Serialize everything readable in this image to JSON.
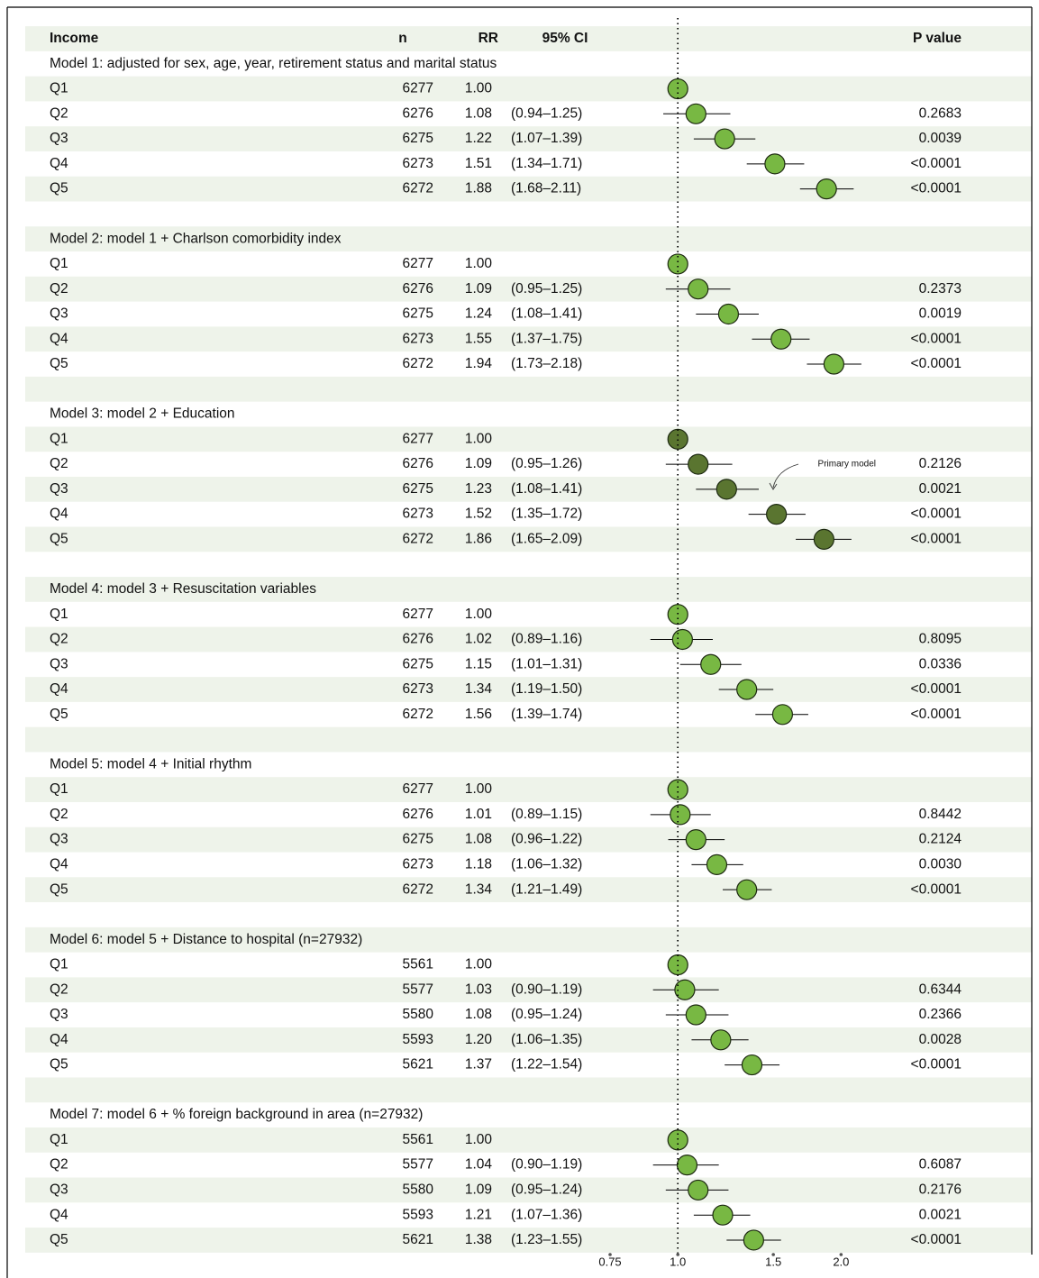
{
  "chart_data": {
    "type": "forest",
    "header": {
      "label": "Income",
      "n": "n",
      "rr": "RR",
      "ci": "95% CI",
      "p": "P value"
    },
    "log_scale": true,
    "xlim": [
      0.7,
      2.4
    ],
    "xticks": [
      0.75,
      {
        "value": 1,
        "label": "1.0"
      },
      1.5,
      {
        "value": 2,
        "label": "2.0"
      }
    ],
    "reference_line": 1,
    "annotation": "Primary model",
    "groups": [
      {
        "title": "Model 1: adjusted for sex, age, year, retirement status and marital status",
        "color": "#78b843",
        "categories": [
          "Q1",
          "Q2",
          "Q3",
          "Q4",
          "Q5"
        ],
        "n": [
          6277,
          6276,
          6275,
          6273,
          6272
        ],
        "values": [
          1.0,
          1.08,
          1.22,
          1.51,
          1.88
        ],
        "value_labels": [
          "1.00",
          "1.08",
          "1.22",
          "1.51",
          "1.88"
        ],
        "ci_low": [
          null,
          0.94,
          1.07,
          1.34,
          1.68
        ],
        "ci_high": [
          null,
          1.25,
          1.39,
          1.71,
          2.11
        ],
        "ci_labels": [
          null,
          "(0.94–1.25)",
          "(1.07–1.39)",
          "(1.34–1.71)",
          "(1.68–2.11)"
        ],
        "p_values": [
          null,
          "0.2683",
          "0.0039",
          "<0.0001",
          "<0.0001"
        ]
      },
      {
        "title": "Model 2: model 1 + Charlson comorbidity index",
        "color": "#78b843",
        "categories": [
          "Q1",
          "Q2",
          "Q3",
          "Q4",
          "Q5"
        ],
        "n": [
          6277,
          6276,
          6275,
          6273,
          6272
        ],
        "values": [
          1.0,
          1.09,
          1.24,
          1.55,
          1.94
        ],
        "value_labels": [
          "1.00",
          "1.09",
          "1.24",
          "1.55",
          "1.94"
        ],
        "ci_low": [
          null,
          0.95,
          1.08,
          1.37,
          1.73
        ],
        "ci_high": [
          null,
          1.25,
          1.41,
          1.75,
          2.18
        ],
        "ci_labels": [
          null,
          "(0.95–1.25)",
          "(1.08–1.41)",
          "(1.37–1.75)",
          "(1.73–2.18)"
        ],
        "p_values": [
          null,
          "0.2373",
          "0.0019",
          "<0.0001",
          "<0.0001"
        ]
      },
      {
        "title": "Model 3: model 2 + Education",
        "color": "#5a7530",
        "categories": [
          "Q1",
          "Q2",
          "Q3",
          "Q4",
          "Q5"
        ],
        "n": [
          6277,
          6276,
          6275,
          6273,
          6272
        ],
        "values": [
          1.0,
          1.09,
          1.23,
          1.52,
          1.86
        ],
        "value_labels": [
          "1.00",
          "1.09",
          "1.23",
          "1.52",
          "1.86"
        ],
        "ci_low": [
          null,
          0.95,
          1.08,
          1.35,
          1.65
        ],
        "ci_high": [
          null,
          1.26,
          1.41,
          1.72,
          2.09
        ],
        "ci_labels": [
          null,
          "(0.95–1.26)",
          "(1.08–1.41)",
          "(1.35–1.72)",
          "(1.65–2.09)"
        ],
        "p_values": [
          null,
          "0.2126",
          "0.0021",
          "<0.0001",
          "<0.0001"
        ]
      },
      {
        "title": "Model 4: model 3 + Resuscitation variables",
        "color": "#78b843",
        "categories": [
          "Q1",
          "Q2",
          "Q3",
          "Q4",
          "Q5"
        ],
        "n": [
          6277,
          6276,
          6275,
          6273,
          6272
        ],
        "values": [
          1.0,
          1.02,
          1.15,
          1.34,
          1.56
        ],
        "value_labels": [
          "1.00",
          "1.02",
          "1.15",
          "1.34",
          "1.56"
        ],
        "ci_low": [
          null,
          0.89,
          1.01,
          1.19,
          1.39
        ],
        "ci_high": [
          null,
          1.16,
          1.31,
          1.5,
          1.74
        ],
        "ci_labels": [
          null,
          "(0.89–1.16)",
          "(1.01–1.31)",
          "(1.19–1.50)",
          "(1.39–1.74)"
        ],
        "p_values": [
          null,
          "0.8095",
          "0.0336",
          "<0.0001",
          "<0.0001"
        ]
      },
      {
        "title": "Model 5: model 4 + Initial rhythm",
        "color": "#78b843",
        "categories": [
          "Q1",
          "Q2",
          "Q3",
          "Q4",
          "Q5"
        ],
        "n": [
          6277,
          6276,
          6275,
          6273,
          6272
        ],
        "values": [
          1.0,
          1.01,
          1.08,
          1.18,
          1.34
        ],
        "value_labels": [
          "1.00",
          "1.01",
          "1.08",
          "1.18",
          "1.34"
        ],
        "ci_low": [
          null,
          0.89,
          0.96,
          1.06,
          1.21
        ],
        "ci_high": [
          null,
          1.15,
          1.22,
          1.32,
          1.49
        ],
        "ci_labels": [
          null,
          "(0.89–1.15)",
          "(0.96–1.22)",
          "(1.06–1.32)",
          "(1.21–1.49)"
        ],
        "p_values": [
          null,
          "0.8442",
          "0.2124",
          "0.0030",
          "<0.0001"
        ]
      },
      {
        "title": "Model 6: model 5 + Distance to hospital (n=27932)",
        "color": "#78b843",
        "categories": [
          "Q1",
          "Q2",
          "Q3",
          "Q4",
          "Q5"
        ],
        "n": [
          5561,
          5577,
          5580,
          5593,
          5621
        ],
        "values": [
          1.0,
          1.03,
          1.08,
          1.2,
          1.37
        ],
        "value_labels": [
          "1.00",
          "1.03",
          "1.08",
          "1.20",
          "1.37"
        ],
        "ci_low": [
          null,
          0.9,
          0.95,
          1.06,
          1.22
        ],
        "ci_high": [
          null,
          1.19,
          1.24,
          1.35,
          1.54
        ],
        "ci_labels": [
          null,
          "(0.90–1.19)",
          "(0.95–1.24)",
          "(1.06–1.35)",
          "(1.22–1.54)"
        ],
        "p_values": [
          null,
          "0.6344",
          "0.2366",
          "0.0028",
          "<0.0001"
        ]
      },
      {
        "title": "Model 7: model 6 + % foreign background in area (n=27932)",
        "color": "#78b843",
        "categories": [
          "Q1",
          "Q2",
          "Q3",
          "Q4",
          "Q5"
        ],
        "n": [
          5561,
          5577,
          5580,
          5593,
          5621
        ],
        "values": [
          1.0,
          1.04,
          1.09,
          1.21,
          1.38
        ],
        "value_labels": [
          "1.00",
          "1.04",
          "1.09",
          "1.21",
          "1.38"
        ],
        "ci_low": [
          null,
          0.9,
          0.95,
          1.07,
          1.23
        ],
        "ci_high": [
          null,
          1.19,
          1.24,
          1.36,
          1.55
        ],
        "ci_labels": [
          null,
          "(0.90–1.19)",
          "(0.95–1.24)",
          "(1.07–1.36)",
          "(1.23–1.55)"
        ],
        "p_values": [
          null,
          "0.6087",
          "0.2176",
          "0.0021",
          "<0.0001"
        ]
      }
    ]
  }
}
